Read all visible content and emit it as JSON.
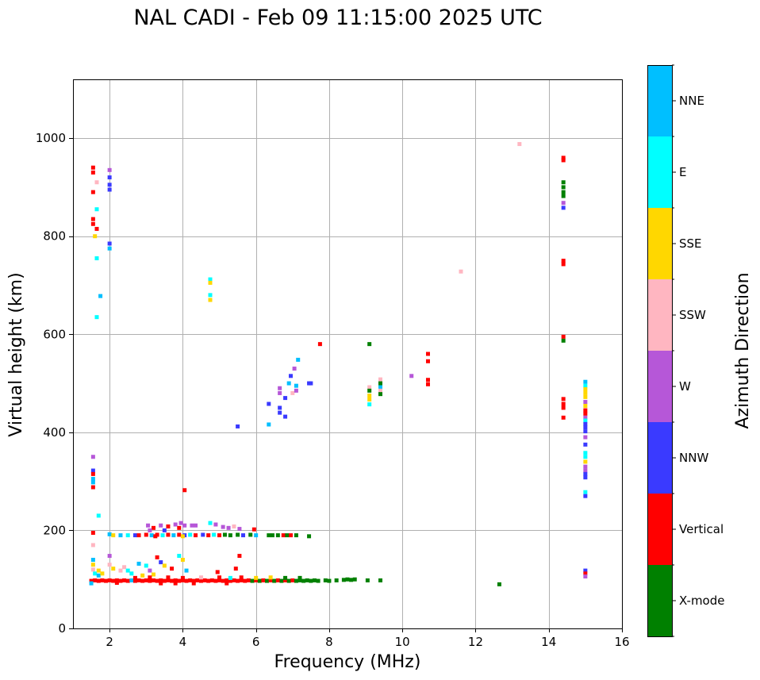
{
  "chart_data": {
    "type": "scatter",
    "title": "NAL CADI - Feb 09 11:15:00 2025 UTC",
    "xlabel": "Frequency (MHz)",
    "ylabel": "Virtual height (km)",
    "xlim": [
      1,
      16
    ],
    "ylim": [
      0,
      1120
    ],
    "xticks": [
      2,
      4,
      6,
      8,
      10,
      12,
      14,
      16
    ],
    "yticks": [
      0,
      200,
      400,
      600,
      800,
      1000
    ],
    "grid": true,
    "colorbar": {
      "label": "Azimuth Direction",
      "categories": [
        {
          "name": "X-mode",
          "color": "#008000"
        },
        {
          "name": "Vertical",
          "color": "#ff0000"
        },
        {
          "name": "NNW",
          "color": "#3a3aff"
        },
        {
          "name": "W",
          "color": "#b657d8"
        },
        {
          "name": "SSW",
          "color": "#ffb6c1"
        },
        {
          "name": "SSE",
          "color": "#ffd700"
        },
        {
          "name": "E",
          "color": "#00ffff"
        },
        {
          "name": "NNE",
          "color": "#00bfff"
        }
      ]
    },
    "cells": [
      [
        1.55,
        940,
        "Vertical"
      ],
      [
        1.55,
        930,
        "Vertical"
      ],
      [
        1.55,
        890,
        "Vertical"
      ],
      [
        1.55,
        835,
        "Vertical"
      ],
      [
        1.55,
        825,
        "Vertical"
      ],
      [
        1.65,
        815,
        "Vertical"
      ],
      [
        1.6,
        800,
        "SSE"
      ],
      [
        1.65,
        910,
        "SSW"
      ],
      [
        1.65,
        855,
        "E"
      ],
      [
        1.65,
        755,
        "E"
      ],
      [
        1.75,
        678,
        "NNE"
      ],
      [
        1.65,
        635,
        "E"
      ],
      [
        2.0,
        935,
        "W"
      ],
      [
        2.0,
        920,
        "NNW"
      ],
      [
        2.0,
        905,
        "NNW"
      ],
      [
        2.0,
        895,
        "NNW"
      ],
      [
        2.0,
        785,
        "NNW"
      ],
      [
        2.0,
        775,
        "NNE"
      ],
      [
        1.55,
        350,
        "W"
      ],
      [
        1.55,
        322,
        "NNW"
      ],
      [
        1.55,
        315,
        "Vertical"
      ],
      [
        1.55,
        305,
        "NNE"
      ],
      [
        1.55,
        298,
        "NNE"
      ],
      [
        1.55,
        288,
        "Vertical"
      ],
      [
        1.7,
        230,
        "E"
      ],
      [
        4.75,
        712,
        "E"
      ],
      [
        4.75,
        705,
        "SSE"
      ],
      [
        4.75,
        680,
        "E"
      ],
      [
        4.75,
        670,
        "SSE"
      ],
      [
        4.05,
        282,
        "Vertical"
      ],
      [
        5.5,
        412,
        "NNW"
      ],
      [
        6.35,
        458,
        "NNW"
      ],
      [
        6.35,
        416,
        "NNE"
      ],
      [
        6.65,
        450,
        "NNW"
      ],
      [
        6.65,
        440,
        "NNW"
      ],
      [
        6.65,
        480,
        "W"
      ],
      [
        6.65,
        490,
        "W"
      ],
      [
        6.8,
        470,
        "NNW"
      ],
      [
        6.8,
        432,
        "NNW"
      ],
      [
        6.9,
        500,
        "NNE"
      ],
      [
        6.95,
        515,
        "NNW"
      ],
      [
        7.0,
        480,
        "SSW"
      ],
      [
        7.05,
        530,
        "W"
      ],
      [
        7.1,
        495,
        "NNE"
      ],
      [
        7.1,
        485,
        "W"
      ],
      [
        7.15,
        548,
        "NNE"
      ],
      [
        7.45,
        500,
        "NNW"
      ],
      [
        7.5,
        500,
        "NNW"
      ],
      [
        7.75,
        580,
        "Vertical"
      ],
      [
        9.1,
        580,
        "X-mode"
      ],
      [
        9.1,
        492,
        "SSW"
      ],
      [
        9.1,
        485,
        "X-mode"
      ],
      [
        9.1,
        475,
        "SSE"
      ],
      [
        9.1,
        467,
        "SSE"
      ],
      [
        9.1,
        457,
        "E"
      ],
      [
        9.4,
        508,
        "SSW"
      ],
      [
        9.4,
        500,
        "X-mode"
      ],
      [
        9.4,
        492,
        "NNE"
      ],
      [
        9.4,
        485,
        "SSW"
      ],
      [
        9.4,
        478,
        "X-mode"
      ],
      [
        10.25,
        515,
        "W"
      ],
      [
        10.7,
        560,
        "Vertical"
      ],
      [
        10.7,
        545,
        "Vertical"
      ],
      [
        10.7,
        507,
        "Vertical"
      ],
      [
        10.7,
        498,
        "Vertical"
      ],
      [
        11.6,
        728,
        "SSW"
      ],
      [
        13.2,
        988,
        "SSW"
      ],
      [
        14.4,
        960,
        "Vertical"
      ],
      [
        14.4,
        955,
        "Vertical"
      ],
      [
        14.4,
        910,
        "X-mode"
      ],
      [
        14.4,
        900,
        "X-mode"
      ],
      [
        14.4,
        890,
        "X-mode"
      ],
      [
        14.4,
        882,
        "X-mode"
      ],
      [
        14.4,
        868,
        "W"
      ],
      [
        14.4,
        858,
        "NNW"
      ],
      [
        14.4,
        750,
        "Vertical"
      ],
      [
        14.4,
        743,
        "Vertical"
      ],
      [
        14.4,
        595,
        "Vertical"
      ],
      [
        14.4,
        587,
        "X-mode"
      ],
      [
        14.4,
        468,
        "Vertical"
      ],
      [
        14.4,
        458,
        "Vertical"
      ],
      [
        14.4,
        450,
        "Vertical"
      ],
      [
        14.4,
        430,
        "Vertical"
      ],
      [
        15.0,
        503,
        "NNE"
      ],
      [
        15.0,
        495,
        "E"
      ],
      [
        15.0,
        488,
        "SSE"
      ],
      [
        15.0,
        480,
        "SSE"
      ],
      [
        15.0,
        472,
        "SSE"
      ],
      [
        15.0,
        462,
        "W"
      ],
      [
        15.0,
        454,
        "SSE"
      ],
      [
        15.0,
        445,
        "Vertical"
      ],
      [
        15.0,
        438,
        "Vertical"
      ],
      [
        15.0,
        430,
        "W"
      ],
      [
        15.0,
        424,
        "E"
      ],
      [
        15.0,
        417,
        "NNW"
      ],
      [
        15.0,
        410,
        "NNW"
      ],
      [
        15.0,
        402,
        "NNW"
      ],
      [
        15.0,
        390,
        "W"
      ],
      [
        15.0,
        375,
        "NNW"
      ],
      [
        15.0,
        358,
        "E"
      ],
      [
        15.0,
        350,
        "E"
      ],
      [
        15.0,
        340,
        "SSE"
      ],
      [
        15.0,
        330,
        "W"
      ],
      [
        15.0,
        322,
        "W"
      ],
      [
        15.0,
        315,
        "NNW"
      ],
      [
        15.0,
        308,
        "NNW"
      ],
      [
        15.0,
        278,
        "E"
      ],
      [
        15.0,
        270,
        "NNW"
      ],
      [
        15.0,
        118,
        "NNW"
      ],
      [
        15.0,
        112,
        "Vertical"
      ],
      [
        15.0,
        106,
        "W"
      ],
      [
        1.55,
        195,
        "Vertical"
      ],
      [
        1.55,
        170,
        "SSW"
      ],
      [
        12.65,
        90,
        "X-mode"
      ],
      [
        5.55,
        148,
        "Vertical"
      ],
      [
        5.45,
        122,
        "Vertical"
      ],
      [
        4.95,
        115,
        "Vertical"
      ],
      [
        3.05,
        210,
        "W"
      ],
      [
        3.2,
        205,
        "Vertical"
      ],
      [
        3.4,
        210,
        "W"
      ],
      [
        3.6,
        208,
        "Vertical"
      ],
      [
        3.8,
        212,
        "W"
      ],
      [
        3.95,
        215,
        "W"
      ],
      [
        4.05,
        210,
        "W"
      ],
      [
        4.25,
        210,
        "W"
      ],
      [
        4.35,
        210,
        "W"
      ],
      [
        4.75,
        215,
        "E"
      ],
      [
        4.9,
        212,
        "W"
      ],
      [
        5.1,
        207,
        "W"
      ],
      [
        5.25,
        205,
        "W"
      ],
      [
        5.4,
        208,
        "SSW"
      ],
      [
        5.55,
        203,
        "W"
      ],
      [
        5.95,
        202,
        "Vertical"
      ],
      [
        3.1,
        200,
        "W"
      ],
      [
        3.5,
        200,
        "NNW"
      ],
      [
        3.9,
        205,
        "Vertical"
      ],
      [
        2.0,
        192,
        "NNE"
      ],
      [
        2.1,
        190,
        "SSE"
      ],
      [
        2.3,
        190,
        "NNE"
      ],
      [
        2.5,
        190,
        "E"
      ],
      [
        2.7,
        190,
        "NNW"
      ],
      [
        2.8,
        190,
        "Vertical"
      ],
      [
        3.0,
        191,
        "Vertical"
      ],
      [
        3.15,
        190,
        "NNE"
      ],
      [
        3.3,
        191,
        "Vertical"
      ],
      [
        3.45,
        190,
        "E"
      ],
      [
        3.6,
        191,
        "Vertical"
      ],
      [
        3.75,
        190,
        "NNE"
      ],
      [
        3.9,
        191,
        "Vertical"
      ],
      [
        4.05,
        190,
        "NNW"
      ],
      [
        4.2,
        191,
        "E"
      ],
      [
        4.35,
        190,
        "Vertical"
      ],
      [
        4.55,
        191,
        "NNW"
      ],
      [
        4.7,
        190,
        "Vertical"
      ],
      [
        4.85,
        191,
        "E"
      ],
      [
        5.0,
        190,
        "Vertical"
      ],
      [
        5.15,
        191,
        "X-mode"
      ],
      [
        5.3,
        190,
        "X-mode"
      ],
      [
        5.5,
        191,
        "X-mode"
      ],
      [
        5.65,
        190,
        "NNW"
      ],
      [
        5.85,
        191,
        "X-mode"
      ],
      [
        6.0,
        190,
        "NNE"
      ],
      [
        6.35,
        190,
        "X-mode"
      ],
      [
        6.45,
        190,
        "X-mode"
      ],
      [
        6.6,
        190,
        "X-mode"
      ],
      [
        6.75,
        190,
        "Vertical"
      ],
      [
        6.85,
        190,
        "X-mode"
      ],
      [
        6.95,
        190,
        "Vertical"
      ],
      [
        7.1,
        190,
        "X-mode"
      ],
      [
        7.45,
        188,
        "X-mode"
      ],
      [
        3.25,
        188,
        "Vertical"
      ],
      [
        4.0,
        188,
        "SSE"
      ],
      [
        1.55,
        140,
        "NNE"
      ],
      [
        1.55,
        130,
        "SSE"
      ],
      [
        1.55,
        120,
        "SSW"
      ],
      [
        1.6,
        112,
        "E"
      ],
      [
        1.7,
        118,
        "SSE"
      ],
      [
        1.7,
        108,
        "NNE"
      ],
      [
        1.8,
        112,
        "SSE"
      ],
      [
        2.0,
        148,
        "W"
      ],
      [
        2.0,
        130,
        "SSW"
      ],
      [
        2.1,
        122,
        "SSE"
      ],
      [
        2.3,
        118,
        "SSW"
      ],
      [
        2.4,
        125,
        "SSW"
      ],
      [
        2.5,
        118,
        "E"
      ],
      [
        2.6,
        112,
        "E"
      ],
      [
        2.8,
        132,
        "NNE"
      ],
      [
        3.0,
        128,
        "E"
      ],
      [
        3.1,
        118,
        "W"
      ],
      [
        3.3,
        145,
        "Vertical"
      ],
      [
        3.4,
        135,
        "NNW"
      ],
      [
        3.5,
        128,
        "SSE"
      ],
      [
        3.7,
        122,
        "Vertical"
      ],
      [
        3.9,
        148,
        "E"
      ],
      [
        4.0,
        140,
        "SSE"
      ],
      [
        4.1,
        118,
        "NNE"
      ],
      [
        3.2,
        110,
        "SSE"
      ],
      [
        2.9,
        108,
        "SSE"
      ],
      [
        1.5,
        97,
        "Vertical"
      ],
      [
        1.6,
        98,
        "Vertical"
      ],
      [
        1.7,
        97,
        "Vertical"
      ],
      [
        1.8,
        98,
        "Vertical"
      ],
      [
        1.9,
        97,
        "Vertical"
      ],
      [
        2.0,
        98,
        "Vertical"
      ],
      [
        2.1,
        97,
        "Vertical"
      ],
      [
        2.2,
        98,
        "Vertical"
      ],
      [
        2.3,
        97,
        "Vertical"
      ],
      [
        2.4,
        98,
        "Vertical"
      ],
      [
        2.5,
        97,
        "Vertical"
      ],
      [
        2.6,
        98,
        "NNE"
      ],
      [
        2.7,
        97,
        "Vertical"
      ],
      [
        2.8,
        98,
        "Vertical"
      ],
      [
        2.9,
        97,
        "Vertical"
      ],
      [
        3.0,
        98,
        "Vertical"
      ],
      [
        3.1,
        97,
        "Vertical"
      ],
      [
        3.2,
        98,
        "Vertical"
      ],
      [
        3.3,
        97,
        "Vertical"
      ],
      [
        3.4,
        98,
        "Vertical"
      ],
      [
        3.5,
        97,
        "Vertical"
      ],
      [
        3.6,
        98,
        "Vertical"
      ],
      [
        3.7,
        97,
        "Vertical"
      ],
      [
        3.8,
        98,
        "Vertical"
      ],
      [
        3.9,
        97,
        "Vertical"
      ],
      [
        4.0,
        98,
        "Vertical"
      ],
      [
        4.1,
        97,
        "Vertical"
      ],
      [
        4.2,
        98,
        "Vertical"
      ],
      [
        4.3,
        97,
        "Vertical"
      ],
      [
        4.4,
        98,
        "Vertical"
      ],
      [
        4.5,
        97,
        "Vertical"
      ],
      [
        4.6,
        98,
        "Vertical"
      ],
      [
        4.7,
        97,
        "Vertical"
      ],
      [
        4.8,
        98,
        "Vertical"
      ],
      [
        4.9,
        97,
        "Vertical"
      ],
      [
        5.0,
        98,
        "Vertical"
      ],
      [
        5.1,
        97,
        "Vertical"
      ],
      [
        5.2,
        98,
        "Vertical"
      ],
      [
        5.3,
        97,
        "Vertical"
      ],
      [
        5.4,
        98,
        "Vertical"
      ],
      [
        5.5,
        97,
        "Vertical"
      ],
      [
        5.6,
        98,
        "Vertical"
      ],
      [
        5.7,
        97,
        "Vertical"
      ],
      [
        5.8,
        98,
        "Vertical"
      ],
      [
        5.9,
        97,
        "X-mode"
      ],
      [
        6.0,
        98,
        "Vertical"
      ],
      [
        6.1,
        97,
        "X-mode"
      ],
      [
        6.2,
        98,
        "Vertical"
      ],
      [
        6.3,
        97,
        "X-mode"
      ],
      [
        6.4,
        98,
        "Vertical"
      ],
      [
        6.5,
        97,
        "X-mode"
      ],
      [
        6.6,
        98,
        "Vertical"
      ],
      [
        6.7,
        97,
        "X-mode"
      ],
      [
        6.8,
        98,
        "Vertical"
      ],
      [
        6.9,
        97,
        "X-mode"
      ],
      [
        7.0,
        98,
        "Vertical"
      ],
      [
        7.1,
        97,
        "X-mode"
      ],
      [
        7.2,
        98,
        "X-mode"
      ],
      [
        7.3,
        97,
        "X-mode"
      ],
      [
        7.4,
        98,
        "X-mode"
      ],
      [
        7.5,
        97,
        "X-mode"
      ],
      [
        7.6,
        98,
        "X-mode"
      ],
      [
        7.7,
        97,
        "X-mode"
      ],
      [
        7.9,
        98,
        "X-mode"
      ],
      [
        8.0,
        97,
        "X-mode"
      ],
      [
        8.2,
        98,
        "X-mode"
      ],
      [
        8.4,
        99,
        "X-mode"
      ],
      [
        8.5,
        100,
        "X-mode"
      ],
      [
        8.6,
        99,
        "X-mode"
      ],
      [
        8.7,
        100,
        "X-mode"
      ],
      [
        9.05,
        98,
        "X-mode"
      ],
      [
        9.4,
        98,
        "X-mode"
      ],
      [
        2.7,
        103,
        "Vertical"
      ],
      [
        3.1,
        104,
        "Vertical"
      ],
      [
        3.6,
        104,
        "Vertical"
      ],
      [
        4.0,
        103,
        "Vertical"
      ],
      [
        4.5,
        104,
        "SSW"
      ],
      [
        5.0,
        104,
        "Vertical"
      ],
      [
        5.3,
        103,
        "E"
      ],
      [
        5.6,
        104,
        "Vertical"
      ],
      [
        6.0,
        103,
        "SSE"
      ],
      [
        6.4,
        104,
        "SSE"
      ],
      [
        6.8,
        103,
        "X-mode"
      ],
      [
        7.2,
        103,
        "X-mode"
      ],
      [
        3.4,
        92,
        "Vertical"
      ],
      [
        3.8,
        92,
        "Vertical"
      ],
      [
        4.3,
        92,
        "Vertical"
      ],
      [
        5.2,
        92,
        "Vertical"
      ],
      [
        1.5,
        92,
        "NNE"
      ],
      [
        2.2,
        93,
        "Vertical"
      ]
    ]
  }
}
